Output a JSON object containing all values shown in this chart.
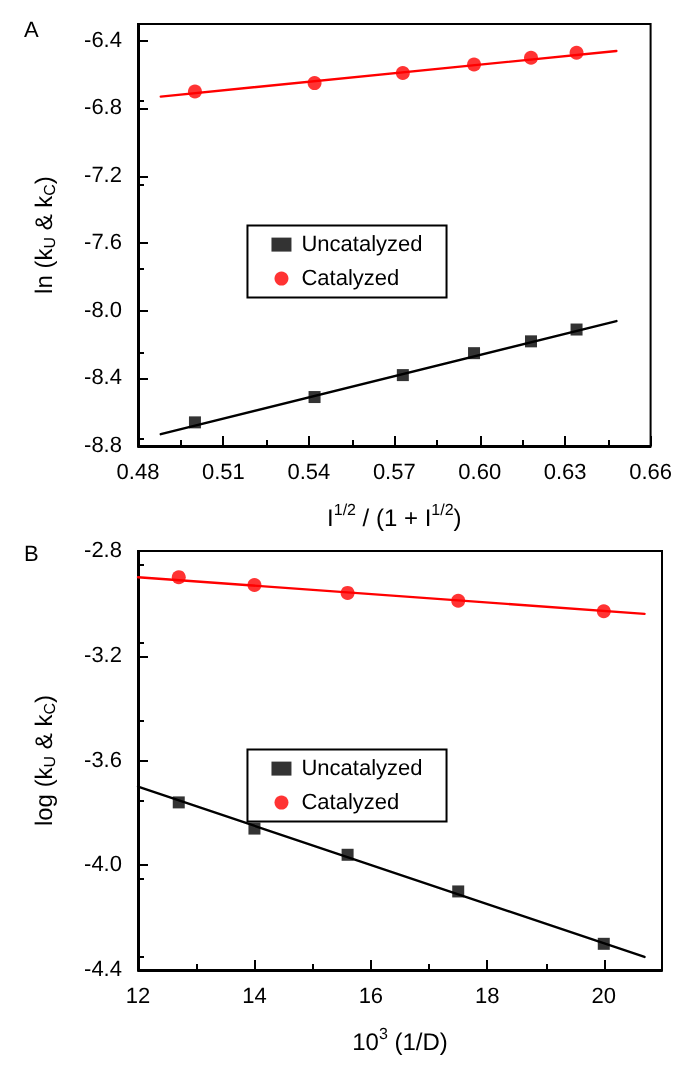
{
  "chart_data": [
    {
      "type": "scatter",
      "annotations": [
        "A"
      ],
      "xlabel": "I$^{1/2}$ / (1 + I$^{1/2}$)",
      "ylabel": "ln (k$_{U}$ & k$_{C}$)",
      "xlim": [
        0.48,
        0.66
      ],
      "xticks": [
        0.48,
        0.51,
        0.54,
        0.57,
        {
          "value": 0.6,
          "label": "0.60"
        },
        0.63,
        0.66
      ],
      "ylim": [
        -8.8,
        -6.3
      ],
      "yticks": [
        {
          "value": -8.8,
          "label": "-8.8"
        },
        -8.4,
        {
          "value": -8,
          "label": "-8.0"
        },
        -7.6,
        -7.2,
        -6.8,
        -6.4
      ],
      "grid": false,
      "legend": "center",
      "series": [
        {
          "name": "Uncatalyzed",
          "marker": "square",
          "color": "#000000",
          "x": [
            0.5,
            0.542,
            0.573,
            0.598,
            0.618,
            0.634
          ],
          "values": [
            -8.66,
            -8.51,
            -8.38,
            -8.25,
            -8.18,
            -8.11
          ]
        },
        {
          "name": "Catalyzed",
          "marker": "circle",
          "color": "#ff0000",
          "x": [
            0.5,
            0.542,
            0.573,
            0.598,
            0.618,
            0.634
          ],
          "values": [
            -6.7,
            -6.65,
            -6.59,
            -6.54,
            -6.5,
            -6.47
          ]
        },
        {
          "type": "line",
          "marker": "none",
          "line_style": "solid",
          "color": "#000000",
          "x": [
            0.488,
            0.648
          ],
          "values": [
            -8.73,
            -8.06
          ]
        },
        {
          "type": "line",
          "marker": "none",
          "line_style": "solid",
          "color": "#ff0000",
          "x": [
            0.488,
            0.648
          ],
          "values": [
            -6.73,
            -6.46
          ]
        }
      ]
    },
    {
      "type": "scatter",
      "annotations": [
        "B"
      ],
      "xlabel": "10$^{3}$ (1/D)",
      "ylabel": "log (k$_{U}$ & k$_{C}$)",
      "xlim": [
        12,
        21
      ],
      "xticks": [
        12,
        14,
        16,
        18,
        20
      ],
      "ylim": [
        -4.4,
        -2.8
      ],
      "yticks": [
        -4.4,
        {
          "value": -4,
          "label": "-4.0"
        },
        -3.6,
        -3.2,
        -2.8
      ],
      "grid": false,
      "legend": "center",
      "series": [
        {
          "name": "Uncatalyzed",
          "marker": "square",
          "color": "#000000",
          "x": [
            12.7,
            14,
            15.6,
            17.5,
            20
          ],
          "values": [
            -3.76,
            -3.86,
            -3.96,
            -4.1,
            -4.3
          ]
        },
        {
          "name": "Catalyzed",
          "marker": "circle",
          "color": "#ff0000",
          "x": [
            12.7,
            14,
            15.6,
            17.5,
            20
          ],
          "values": [
            -2.9,
            -2.93,
            -2.96,
            -2.99,
            -3.03
          ]
        },
        {
          "type": "line",
          "marker": "none",
          "line_style": "solid",
          "color": "#000000",
          "x": [
            12,
            20.7
          ],
          "values": [
            -3.7,
            -4.35
          ]
        },
        {
          "type": "line",
          "marker": "none",
          "line_style": "solid",
          "color": "#ff0000",
          "x": [
            12,
            20.7
          ],
          "values": [
            -2.9,
            -3.04
          ]
        }
      ]
    }
  ]
}
